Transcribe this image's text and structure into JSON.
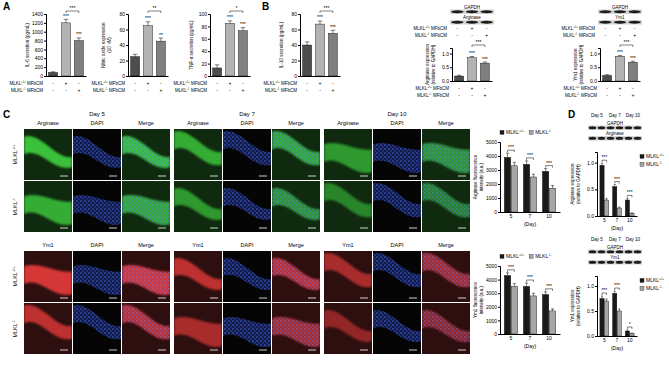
{
  "chart_data": [
    {
      "type": "bar",
      "y_label": "IL-6 secretion (pg/mL)",
      "categories": [
        null,
        null,
        null
      ],
      "values": [
        80,
        1200,
        800
      ],
      "errors": [
        15,
        80,
        60
      ],
      "colors": [
        "#4d4d4d",
        "#b3b3b3",
        "#808080"
      ],
      "ylim": [
        0,
        1400
      ],
      "yticks": [
        0,
        200,
        400,
        600,
        800,
        1000,
        1200,
        1400
      ],
      "significance": [
        null,
        "***",
        "***"
      ],
      "brackets": [
        {
          "from": 1,
          "to": 2,
          "label": "***"
        }
      ],
      "conditions": [
        {
          "label": "MLKL+/+ MFbCM",
          "marks": [
            "-",
            "+",
            "-"
          ]
        },
        {
          "label": "MLKL-/- MFbCM",
          "marks": [
            "-",
            "-",
            "+"
          ]
        }
      ]
    },
    {
      "type": "bar",
      "y_label": [
        "Nitric oxide expression",
        "(10⁻⁶M)"
      ],
      "categories": [
        null,
        null,
        null
      ],
      "values": [
        25,
        65,
        45
      ],
      "errors": [
        3,
        5,
        4
      ],
      "colors": [
        "#4d4d4d",
        "#b3b3b3",
        "#808080"
      ],
      "ylim": [
        0,
        80
      ],
      "yticks": [
        0,
        20,
        40,
        60,
        80
      ],
      "significance": [
        null,
        "***",
        "**"
      ],
      "brackets": [
        {
          "from": 1,
          "to": 2,
          "label": "**"
        }
      ],
      "conditions": [
        {
          "label": "MLKL+/+ MFbCM",
          "marks": [
            "-",
            "+",
            "-"
          ]
        },
        {
          "label": "MLKL-/- MFbCM",
          "marks": [
            "-",
            "-",
            "+"
          ]
        }
      ]
    },
    {
      "type": "bar",
      "y_label": "TNF-α secretion (pg/mL)",
      "categories": [
        null,
        null,
        null
      ],
      "values": [
        13,
        85,
        73
      ],
      "errors": [
        5,
        4,
        5
      ],
      "colors": [
        "#4d4d4d",
        "#b3b3b3",
        "#808080"
      ],
      "ylim": [
        0,
        100
      ],
      "yticks": [
        0,
        20,
        40,
        60,
        80,
        100
      ],
      "significance": [
        null,
        "***",
        "***"
      ],
      "brackets": [
        {
          "from": 1,
          "to": 2,
          "label": "*"
        }
      ],
      "conditions": [
        {
          "label": "MLKL+/+ MFbCM",
          "marks": [
            "-",
            "+",
            "-"
          ]
        },
        {
          "label": "MLKL-/- MFbCM",
          "marks": [
            "-",
            "-",
            "+"
          ]
        }
      ]
    },
    {
      "type": "bar",
      "y_label": "IL-10 secretion (pg/mL)",
      "categories": [
        null,
        null,
        null
      ],
      "values": [
        40,
        67,
        55
      ],
      "errors": [
        4,
        4,
        4
      ],
      "colors": [
        "#4d4d4d",
        "#b3b3b3",
        "#808080"
      ],
      "ylim": [
        0,
        80
      ],
      "yticks": [
        0,
        20,
        40,
        60,
        80
      ],
      "significance": [
        null,
        "***",
        "***"
      ],
      "brackets": [
        {
          "from": 1,
          "to": 2,
          "label": "***"
        }
      ],
      "conditions": [
        {
          "label": "MLKL+/+ MFbCM",
          "marks": [
            "-",
            "+",
            "-"
          ]
        },
        {
          "label": "MLKL-/- MFbCM",
          "marks": [
            "-",
            "-",
            "+"
          ]
        }
      ]
    },
    {
      "type": "bar",
      "y_label": [
        "Arginase expression",
        "(relative to GAPDH)"
      ],
      "categories": [
        null,
        null,
        null
      ],
      "values": [
        0.18,
        0.85,
        0.65
      ],
      "errors": [
        0.03,
        0.04,
        0.04
      ],
      "colors": [
        "#4d4d4d",
        "#b3b3b3",
        "#808080"
      ],
      "ylim": [
        0,
        1.2
      ],
      "yticks": [
        {
          "value": 0,
          "label": "0.0"
        },
        0.5,
        {
          "value": 1,
          "label": "1.0"
        }
      ],
      "significance": [
        null,
        "***",
        "***"
      ],
      "brackets": [
        {
          "from": 1,
          "to": 2,
          "label": "***"
        }
      ],
      "conditions": [
        {
          "label": "MLKL+/+ MFbCM",
          "marks": [
            "-",
            "+",
            "-"
          ]
        },
        {
          "label": "MLKL-/- MFbCM",
          "marks": [
            "-",
            "-",
            "+"
          ]
        }
      ]
    },
    {
      "type": "bar",
      "y_label": [
        "Ym1 expression",
        "(relative to GAPDH)"
      ],
      "categories": [
        null,
        null,
        null
      ],
      "values": [
        0.2,
        0.9,
        0.68
      ],
      "errors": [
        0.03,
        0.03,
        0.04
      ],
      "colors": [
        "#4d4d4d",
        "#b3b3b3",
        "#808080"
      ],
      "ylim": [
        0,
        1.2
      ],
      "yticks": [
        {
          "value": 0,
          "label": "0.0"
        },
        0.5,
        {
          "value": 1,
          "label": "1.0"
        }
      ],
      "significance": [
        null,
        "***",
        "***"
      ],
      "brackets": [
        {
          "from": 1,
          "to": 2,
          "label": "***"
        }
      ],
      "conditions": [
        {
          "label": "MLKL+/+ MFbCM",
          "marks": [
            "-",
            "+",
            "-"
          ]
        },
        {
          "label": "MLKL-/- MFbCM",
          "marks": [
            "-",
            "-",
            "+"
          ]
        }
      ]
    },
    {
      "type": "bar",
      "y_label": [
        "Arginase fluorescence",
        "intensity (a.u.)"
      ],
      "x_label": "(Day)",
      "categories": [
        "5",
        "7",
        "10"
      ],
      "series": [
        {
          "name": "MLKL+/+",
          "color": "#1a1a1a",
          "values": [
            3900,
            3400,
            2900
          ],
          "errors": [
            300,
            250,
            200
          ]
        },
        {
          "name": "MLKL-/-",
          "color": "#a6a6a6",
          "values": [
            3300,
            2500,
            1700
          ],
          "errors": [
            250,
            200,
            200
          ]
        }
      ],
      "ylim": [
        0,
        5000
      ],
      "yticks": [
        0,
        1000,
        2000,
        3000,
        4000,
        5000
      ],
      "legend": "top",
      "significance": [
        "***",
        "***",
        "***"
      ]
    },
    {
      "type": "bar",
      "y_label": [
        "Ym1 fluorescence",
        "intensity (a.u.)"
      ],
      "x_label": "(Day)",
      "categories": [
        "5",
        "7",
        "10"
      ],
      "series": [
        {
          "name": "MLKL+/+",
          "color": "#1a1a1a",
          "values": [
            4300,
            3500,
            2900
          ],
          "errors": [
            200,
            250,
            200
          ]
        },
        {
          "name": "MLKL-/-",
          "color": "#a6a6a6",
          "values": [
            3500,
            2800,
            1700
          ],
          "errors": [
            200,
            200,
            150
          ]
        }
      ],
      "ylim": [
        0,
        5000
      ],
      "yticks": [
        0,
        1000,
        2000,
        3000,
        4000,
        5000
      ],
      "legend": "top",
      "significance": [
        "***",
        "***",
        "***"
      ]
    },
    {
      "type": "bar",
      "y_label": [
        "Arginase expression",
        "(relative to GAPDH)"
      ],
      "x_label": "(Day)",
      "categories": [
        "5",
        "7",
        "10"
      ],
      "series": [
        {
          "name": "MLKL+/+",
          "color": "#1a1a1a",
          "values": [
            0.95,
            0.55,
            0.3
          ],
          "errors": [
            0.04,
            0.04,
            0.03
          ]
        },
        {
          "name": "MLKL-/-",
          "color": "#a6a6a6",
          "values": [
            0.3,
            0.15,
            0.05
          ],
          "errors": [
            0.03,
            0.02,
            0.01
          ]
        }
      ],
      "ylim": [
        0,
        1.2
      ],
      "yticks": [
        {
          "value": 0,
          "label": "0.0"
        },
        0.5,
        {
          "value": 1,
          "label": "1.0"
        }
      ],
      "legend": "right",
      "significance": [
        "***",
        "***",
        "***"
      ]
    },
    {
      "type": "bar",
      "y_label": [
        "Ym1 expression",
        "(relative to GAPDH)"
      ],
      "x_label": "(Day)",
      "categories": [
        "5",
        "7",
        "10"
      ],
      "series": [
        {
          "name": "MLKL+/+",
          "color": "#1a1a1a",
          "values": [
            0.75,
            0.85,
            0.1
          ],
          "errors": [
            0.05,
            0.05,
            0.02
          ]
        },
        {
          "name": "MLKL-/-",
          "color": "#a6a6a6",
          "values": [
            0.7,
            0.5,
            0.05
          ],
          "errors": [
            0.04,
            0.04,
            0.01
          ]
        }
      ],
      "ylim": [
        0,
        1.2
      ],
      "yticks": [
        {
          "value": 0,
          "label": "0.0"
        },
        0.5,
        {
          "value": 1,
          "label": "1.0"
        }
      ],
      "legend": "right",
      "significance": [
        "***",
        "***",
        "*"
      ]
    }
  ],
  "figure": {
    "panels": [
      "A",
      "B",
      "C",
      "D"
    ],
    "micrographs": {
      "days": [
        "Day 5",
        "Day 7",
        "Day 10"
      ],
      "groups": [
        {
          "stains": [
            "Arginase",
            "DAPI",
            "Merge"
          ],
          "rows": [
            "MLKL+/+",
            "MLKL-/-"
          ]
        },
        {
          "stains": [
            "Ym1",
            "DAPI",
            "Merge"
          ],
          "rows": [
            "MLKL+/+",
            "MLKL-/-"
          ]
        }
      ]
    },
    "blots": [
      {
        "bands": [
          "GAPDH",
          "Arginase"
        ],
        "conditions": [
          {
            "label": "MLKL+/+ MFbCM",
            "marks": [
              "-",
              "+",
              "-"
            ]
          },
          {
            "label": "MLKL-/- MFbCM",
            "marks": [
              "-",
              "-",
              "+"
            ]
          }
        ]
      },
      {
        "bands": [
          "GAPDH",
          "Ym1"
        ],
        "conditions": [
          {
            "label": "MLKL+/+ MFbCM",
            "marks": [
              "-",
              "+",
              "-"
            ]
          },
          {
            "label": "MLKL-/- MFbCM",
            "marks": [
              "-",
              "-",
              "+"
            ]
          }
        ]
      },
      {
        "lanes": [
          "Day 5",
          "Day 7",
          "Day 10"
        ],
        "bands": [
          "GAPDH",
          "Arginase"
        ]
      },
      {
        "lanes": [
          "Day 5",
          "Day 7",
          "Day 10"
        ],
        "bands": [
          "GAPDH",
          "Ym1"
        ]
      }
    ]
  }
}
